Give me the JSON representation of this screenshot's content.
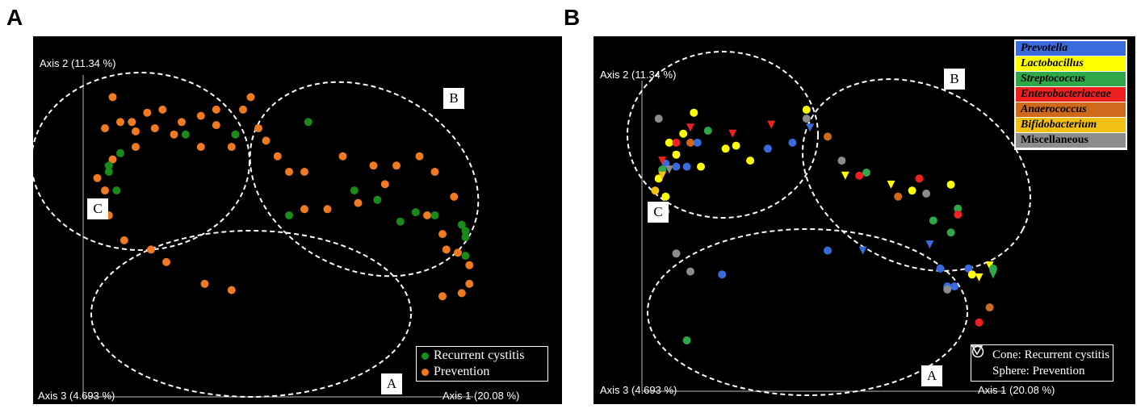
{
  "panels": {
    "a": {
      "letter": "A",
      "axis2_label": "Axis 2 (11.34 %)",
      "axis3_label": "Axis 3 (4.693 %)",
      "axis1_label": "Axis 1 (20.08 %)",
      "cluster_labels": {
        "a": "A",
        "b": "B",
        "c": "C"
      },
      "legend": [
        {
          "label": "Recurrent cystitis",
          "color": "#1a8a1a"
        },
        {
          "label": "Prevention",
          "color": "#f07a22"
        }
      ]
    },
    "b": {
      "letter": "B",
      "axis2_label": "Axis 2 (11.34 %)",
      "axis3_label": "Axis 3 (4.693 %)",
      "axis1_label": "Axis 1 (20.08 %)",
      "cluster_labels": {
        "a": "A",
        "b": "B",
        "c": "C"
      },
      "genus_legend": [
        {
          "label": "Prevotella",
          "color": "#3a6bdc"
        },
        {
          "label": "Lactobacillus",
          "color": "#ffff00"
        },
        {
          "label": "Streptococcus",
          "color": "#2fa84a"
        },
        {
          "label": "Enterobacteriaceae",
          "color": "#ee2020"
        },
        {
          "label": "Anaerococcus",
          "color": "#cf6a1c"
        },
        {
          "label": "Bifidobacterium",
          "color": "#f2c012"
        },
        {
          "label": "Miscellaneous",
          "color": "#8c8c8c"
        }
      ],
      "shape_legend": {
        "cone": "Cone: Recurrent cystitis",
        "sphere": "Sphere: Prevention"
      }
    }
  },
  "chart_data": [
    {
      "type": "scatter",
      "title": "",
      "xlabel": "Axis 1 (20.08 %)",
      "ylabel": "Axis 2 (11.34 %)",
      "zlabel": "Axis 3 (4.693 %)",
      "grid": false,
      "legend_position": "bottom-right",
      "note": "",
      "series": [
        {
          "name": "Recurrent cystitis",
          "color": "#1a8a1a",
          "points": [
            [
              0.25,
              0.84
            ],
            [
              0.05,
              0.72
            ],
            [
              0.07,
              0.66
            ],
            [
              0.38,
              0.84
            ],
            [
              0.57,
              0.88
            ],
            [
              0.69,
              0.66
            ],
            [
              0.75,
              0.63
            ],
            [
              0.85,
              0.59
            ],
            [
              0.81,
              0.56
            ],
            [
              0.97,
              0.55
            ],
            [
              0.98,
              0.51
            ],
            [
              0.98,
              0.45
            ],
            [
              0.52,
              0.58
            ],
            [
              0.05,
              0.74
            ],
            [
              0.08,
              0.78
            ],
            [
              0.98,
              0.53
            ],
            [
              0.9,
              0.58
            ]
          ]
        },
        {
          "name": "Prevention",
          "color": "#f07a22",
          "points": [
            [
              0.06,
              0.96
            ],
            [
              0.12,
              0.85
            ],
            [
              0.15,
              0.91
            ],
            [
              0.19,
              0.92
            ],
            [
              0.24,
              0.88
            ],
            [
              0.29,
              0.9
            ],
            [
              0.33,
              0.87
            ],
            [
              0.33,
              0.92
            ],
            [
              0.04,
              0.86
            ],
            [
              0.08,
              0.88
            ],
            [
              0.11,
              0.88
            ],
            [
              0.17,
              0.86
            ],
            [
              0.22,
              0.84
            ],
            [
              0.29,
              0.8
            ],
            [
              0.37,
              0.8
            ],
            [
              0.46,
              0.82
            ],
            [
              0.49,
              0.77
            ],
            [
              0.52,
              0.72
            ],
            [
              0.56,
              0.72
            ],
            [
              0.66,
              0.77
            ],
            [
              0.74,
              0.74
            ],
            [
              0.77,
              0.68
            ],
            [
              0.8,
              0.74
            ],
            [
              0.86,
              0.77
            ],
            [
              0.9,
              0.72
            ],
            [
              0.95,
              0.64
            ],
            [
              0.02,
              0.7
            ],
            [
              0.04,
              0.66
            ],
            [
              0.06,
              0.76
            ],
            [
              0.03,
              0.62
            ],
            [
              0.05,
              0.58
            ],
            [
              0.09,
              0.5
            ],
            [
              0.16,
              0.47
            ],
            [
              0.2,
              0.43
            ],
            [
              0.56,
              0.6
            ],
            [
              0.62,
              0.6
            ],
            [
              0.7,
              0.62
            ],
            [
              0.88,
              0.58
            ],
            [
              0.92,
              0.52
            ],
            [
              0.93,
              0.47
            ],
            [
              0.96,
              0.46
            ],
            [
              0.99,
              0.42
            ],
            [
              0.99,
              0.36
            ],
            [
              0.97,
              0.33
            ],
            [
              0.92,
              0.32
            ],
            [
              0.3,
              0.36
            ],
            [
              0.37,
              0.34
            ],
            [
              0.42,
              0.96
            ],
            [
              0.4,
              0.92
            ],
            [
              0.44,
              0.86
            ],
            [
              0.12,
              0.8
            ]
          ]
        }
      ]
    },
    {
      "type": "scatter",
      "title": "",
      "xlabel": "Axis 1 (20.08 %)",
      "ylabel": "Axis 2 (11.34 %)",
      "zlabel": "Axis 3 (4.693 %)",
      "grid": false,
      "legend_position": "top-right",
      "series": [
        {
          "name": "Prevotella",
          "color": "#3a6bdc",
          "cones": [
            [
              0.6,
              0.46
            ],
            [
              0.79,
              0.48
            ],
            [
              0.45,
              0.87
            ]
          ],
          "spheres": [
            [
              0.04,
              0.75
            ],
            [
              0.07,
              0.74
            ],
            [
              0.1,
              0.74
            ],
            [
              0.13,
              0.82
            ],
            [
              0.33,
              0.8
            ],
            [
              0.4,
              0.82
            ],
            [
              0.5,
              0.46
            ],
            [
              0.82,
              0.4
            ],
            [
              0.9,
              0.4
            ],
            [
              0.86,
              0.34
            ],
            [
              0.2,
              0.38
            ],
            [
              0.84,
              0.34
            ]
          ]
        },
        {
          "name": "Lactobacillus",
          "color": "#ffff00",
          "cones": [
            [
              0.55,
              0.71
            ],
            [
              0.68,
              0.68
            ],
            [
              0.96,
              0.41
            ],
            [
              0.93,
              0.37
            ]
          ],
          "spheres": [
            [
              0.05,
              0.82
            ],
            [
              0.09,
              0.85
            ],
            [
              0.12,
              0.92
            ],
            [
              0.21,
              0.8
            ],
            [
              0.24,
              0.81
            ],
            [
              0.28,
              0.76
            ],
            [
              0.44,
              0.93
            ],
            [
              0.02,
              0.7
            ],
            [
              0.04,
              0.64
            ],
            [
              0.03,
              0.58
            ],
            [
              0.74,
              0.66
            ],
            [
              0.85,
              0.68
            ],
            [
              0.91,
              0.38
            ],
            [
              0.14,
              0.74
            ],
            [
              0.07,
              0.78
            ]
          ]
        },
        {
          "name": "Streptococcus",
          "color": "#2fa84a",
          "cones": [
            [
              0.97,
              0.38
            ]
          ],
          "spheres": [
            [
              0.16,
              0.86
            ],
            [
              0.61,
              0.72
            ],
            [
              0.87,
              0.6
            ],
            [
              0.8,
              0.56
            ],
            [
              0.85,
              0.52
            ],
            [
              0.97,
              0.4
            ],
            [
              0.1,
              0.16
            ],
            [
              0.03,
              0.73
            ]
          ]
        },
        {
          "name": "Enterobacteriaceae",
          "color": "#ee2020",
          "cones": [
            [
              0.11,
              0.87
            ],
            [
              0.23,
              0.85
            ],
            [
              0.34,
              0.88
            ],
            [
              0.03,
              0.76
            ]
          ],
          "spheres": [
            [
              0.07,
              0.82
            ],
            [
              0.59,
              0.71
            ],
            [
              0.76,
              0.7
            ],
            [
              0.87,
              0.58
            ],
            [
              0.93,
              0.22
            ]
          ]
        },
        {
          "name": "Anaerococcus",
          "color": "#cf6a1c",
          "cones": [],
          "spheres": [
            [
              0.5,
              0.84
            ],
            [
              0.7,
              0.64
            ],
            [
              0.96,
              0.27
            ],
            [
              0.11,
              0.82
            ]
          ]
        },
        {
          "name": "Bifidobacterium",
          "color": "#f2c012",
          "cones": [
            [
              0.03,
              0.71
            ]
          ],
          "spheres": [
            [
              0.01,
              0.66
            ]
          ]
        },
        {
          "name": "Miscellaneous",
          "color": "#8c8c8c",
          "cones": [
            [
              0.05,
              0.73
            ]
          ],
          "spheres": [
            [
              0.02,
              0.9
            ],
            [
              0.44,
              0.9
            ],
            [
              0.54,
              0.76
            ],
            [
              0.78,
              0.65
            ],
            [
              0.07,
              0.45
            ],
            [
              0.11,
              0.39
            ],
            [
              0.04,
              0.59
            ],
            [
              0.84,
              0.33
            ]
          ]
        }
      ]
    }
  ]
}
